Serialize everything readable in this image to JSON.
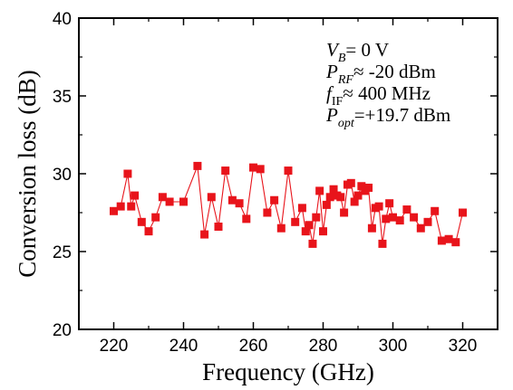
{
  "chart_data": {
    "type": "line",
    "xlabel": "Frequency (GHz)",
    "ylabel": "Conversion loss (dB)",
    "xlim": [
      210,
      330
    ],
    "ylim": [
      20,
      40
    ],
    "xticks": [
      220,
      240,
      260,
      280,
      300,
      320
    ],
    "yticks": [
      20,
      25,
      30,
      35,
      40
    ],
    "x_tick_labels": [
      "220",
      "240",
      "260",
      "280",
      "300",
      "320"
    ],
    "y_tick_labels": [
      "20",
      "25",
      "30",
      "35",
      "40"
    ],
    "grid": false,
    "marker": "square",
    "series": [
      {
        "color": "#e8141b",
        "x": [
          220,
          222,
          224,
          225,
          226,
          228,
          230,
          232,
          234,
          236,
          240,
          244,
          246,
          248,
          250,
          252,
          254,
          256,
          258,
          260,
          262,
          264,
          266,
          268,
          270,
          272,
          274,
          275,
          276,
          277,
          278,
          279,
          280,
          281,
          282,
          283,
          284,
          285,
          286,
          287,
          288,
          289,
          290,
          291,
          292,
          293,
          294,
          295,
          296,
          297,
          298,
          299,
          300,
          302,
          304,
          306,
          308,
          310,
          312,
          314,
          316,
          318,
          320
        ],
        "y": [
          27.6,
          27.9,
          30.0,
          27.9,
          28.6,
          26.9,
          26.3,
          27.2,
          28.5,
          28.2,
          28.2,
          30.5,
          26.1,
          28.5,
          26.6,
          30.2,
          28.3,
          28.1,
          27.1,
          30.4,
          30.3,
          27.5,
          28.3,
          26.5,
          30.2,
          26.9,
          27.8,
          26.3,
          26.7,
          25.5,
          27.2,
          28.9,
          26.3,
          28.0,
          28.5,
          29.0,
          28.6,
          28.5,
          27.5,
          29.3,
          29.4,
          28.2,
          28.6,
          29.2,
          28.9,
          29.1,
          26.5,
          27.8,
          27.9,
          25.5,
          27.1,
          28.1,
          27.2,
          27.0,
          27.7,
          27.2,
          26.5,
          26.9,
          27.6,
          25.7,
          25.8,
          25.6,
          27.5
        ]
      }
    ],
    "annotations": [
      {
        "main": "V",
        "sub": "B",
        "rest": "= 0 V"
      },
      {
        "main": "P",
        "sub": "RF",
        "rest": "≈ -20 dBm"
      },
      {
        "main": "f",
        "sub": "IF",
        "rest": "≈ 400 MHz"
      },
      {
        "main": "P",
        "sub": "opt",
        "rest": "=+19.7 dBm"
      }
    ]
  }
}
